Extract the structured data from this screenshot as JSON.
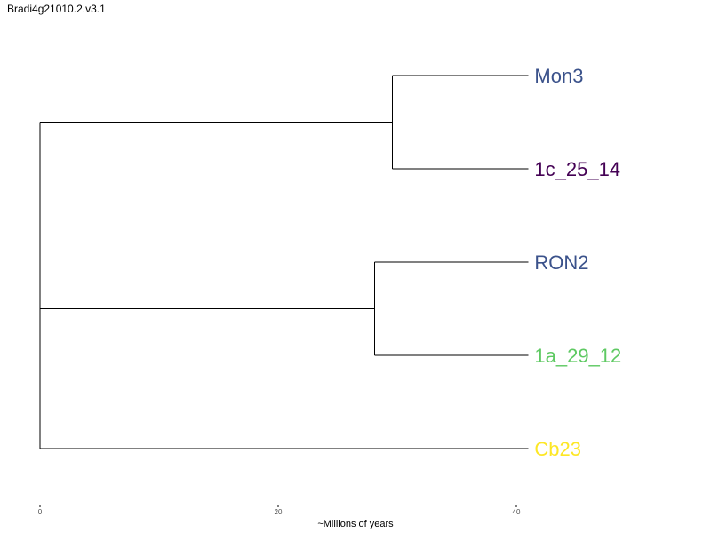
{
  "title": "Bradi4g21010.2.v3.1",
  "chart_data": {
    "type": "dendrogram",
    "xlabel": "~Millions of years",
    "xlim": [
      0,
      56
    ],
    "xticks": [
      0,
      20,
      40
    ],
    "tips": [
      {
        "name": "Mon3",
        "color": "#3b528b"
      },
      {
        "name": "1c_25_14",
        "color": "#440154"
      },
      {
        "name": "RON2",
        "color": "#3b528b"
      },
      {
        "name": "1a_29_12",
        "color": "#5ec962"
      },
      {
        "name": "Cb23",
        "color": "#fde725"
      }
    ],
    "tip_age": 41,
    "clades": [
      {
        "members": [
          "Mon3",
          "1c_25_14"
        ],
        "node_x": 29.6
      },
      {
        "members": [
          "RON2",
          "1a_29_12"
        ],
        "node_x": 28.1
      },
      {
        "members": [
          "Mon3",
          "1c_25_14",
          "RON2",
          "1a_29_12",
          "Cb23"
        ],
        "node_x": 0
      }
    ]
  }
}
